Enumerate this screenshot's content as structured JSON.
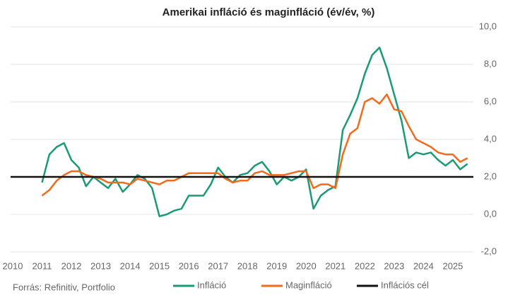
{
  "chart_data": {
    "type": "line",
    "title": "Amerikai infláció és maginfláció (év/év, %)",
    "source": "Forrás: Refinitiv, Portfolio",
    "x": [
      2011.0,
      2011.25,
      2011.5,
      2011.75,
      2012.0,
      2012.25,
      2012.5,
      2012.75,
      2013.0,
      2013.25,
      2013.5,
      2013.75,
      2014.0,
      2014.25,
      2014.5,
      2014.75,
      2015.0,
      2015.25,
      2015.5,
      2015.75,
      2016.0,
      2016.25,
      2016.5,
      2016.75,
      2017.0,
      2017.25,
      2017.5,
      2017.75,
      2018.0,
      2018.25,
      2018.5,
      2018.75,
      2019.0,
      2019.25,
      2019.5,
      2019.75,
      2020.0,
      2020.25,
      2020.5,
      2020.75,
      2021.0,
      2021.25,
      2021.5,
      2021.75,
      2022.0,
      2022.25,
      2022.5,
      2022.75,
      2023.0,
      2023.25,
      2023.5,
      2023.75,
      2024.0,
      2024.25,
      2024.5,
      2024.75,
      2025.0,
      2025.25,
      2025.5
    ],
    "series": [
      {
        "name": "Infláció",
        "color": "#1a9a76",
        "values": [
          1.7,
          3.2,
          3.6,
          3.8,
          2.9,
          2.5,
          1.5,
          2.0,
          1.7,
          1.4,
          1.9,
          1.2,
          1.6,
          2.1,
          1.9,
          1.4,
          -0.1,
          0.0,
          0.2,
          0.3,
          1.0,
          1.0,
          1.0,
          1.6,
          2.5,
          2.0,
          1.7,
          2.1,
          2.2,
          2.6,
          2.8,
          2.3,
          1.6,
          2.0,
          1.8,
          2.0,
          2.4,
          0.3,
          1.0,
          1.3,
          1.5,
          4.5,
          5.3,
          6.2,
          7.5,
          8.5,
          8.9,
          7.8,
          6.4,
          5.0,
          3.0,
          3.3,
          3.2,
          3.3,
          2.9,
          2.6,
          2.9,
          2.4,
          2.7
        ]
      },
      {
        "name": "Maginfláció",
        "color": "#f26b1d",
        "values": [
          1.0,
          1.3,
          1.8,
          2.1,
          2.3,
          2.3,
          2.1,
          2.0,
          1.9,
          1.7,
          1.7,
          1.7,
          1.6,
          1.9,
          1.8,
          1.7,
          1.6,
          1.8,
          1.8,
          2.0,
          2.2,
          2.2,
          2.2,
          2.2,
          2.2,
          1.9,
          1.7,
          1.8,
          1.8,
          2.2,
          2.3,
          2.1,
          2.1,
          2.1,
          2.2,
          2.3,
          2.3,
          1.4,
          1.6,
          1.6,
          1.4,
          3.2,
          4.3,
          4.6,
          6.0,
          6.2,
          5.9,
          6.4,
          5.6,
          5.5,
          4.7,
          4.0,
          3.8,
          3.6,
          3.3,
          3.2,
          3.2,
          2.8,
          3.0
        ]
      }
    ],
    "reference_line": {
      "name": "Inflációs cél",
      "value": 2,
      "color": "#111111"
    },
    "xlim": [
      2010,
      2025.7
    ],
    "xticks": [
      2010,
      2011,
      2012,
      2013,
      2014,
      2015,
      2016,
      2017,
      2018,
      2019,
      2020,
      2021,
      2022,
      2023,
      2024,
      2025
    ],
    "ylim": [
      -2,
      10
    ],
    "yticks": [
      {
        "value": -2,
        "label": "-2,0"
      },
      {
        "value": 0,
        "label": "0,0"
      },
      {
        "value": 2,
        "label": "2,0"
      },
      {
        "value": 4,
        "label": "4,0"
      },
      {
        "value": 6,
        "label": "6,0"
      },
      {
        "value": 8,
        "label": "8,0"
      },
      {
        "value": 10,
        "label": "10,0"
      }
    ],
    "grid": true
  }
}
